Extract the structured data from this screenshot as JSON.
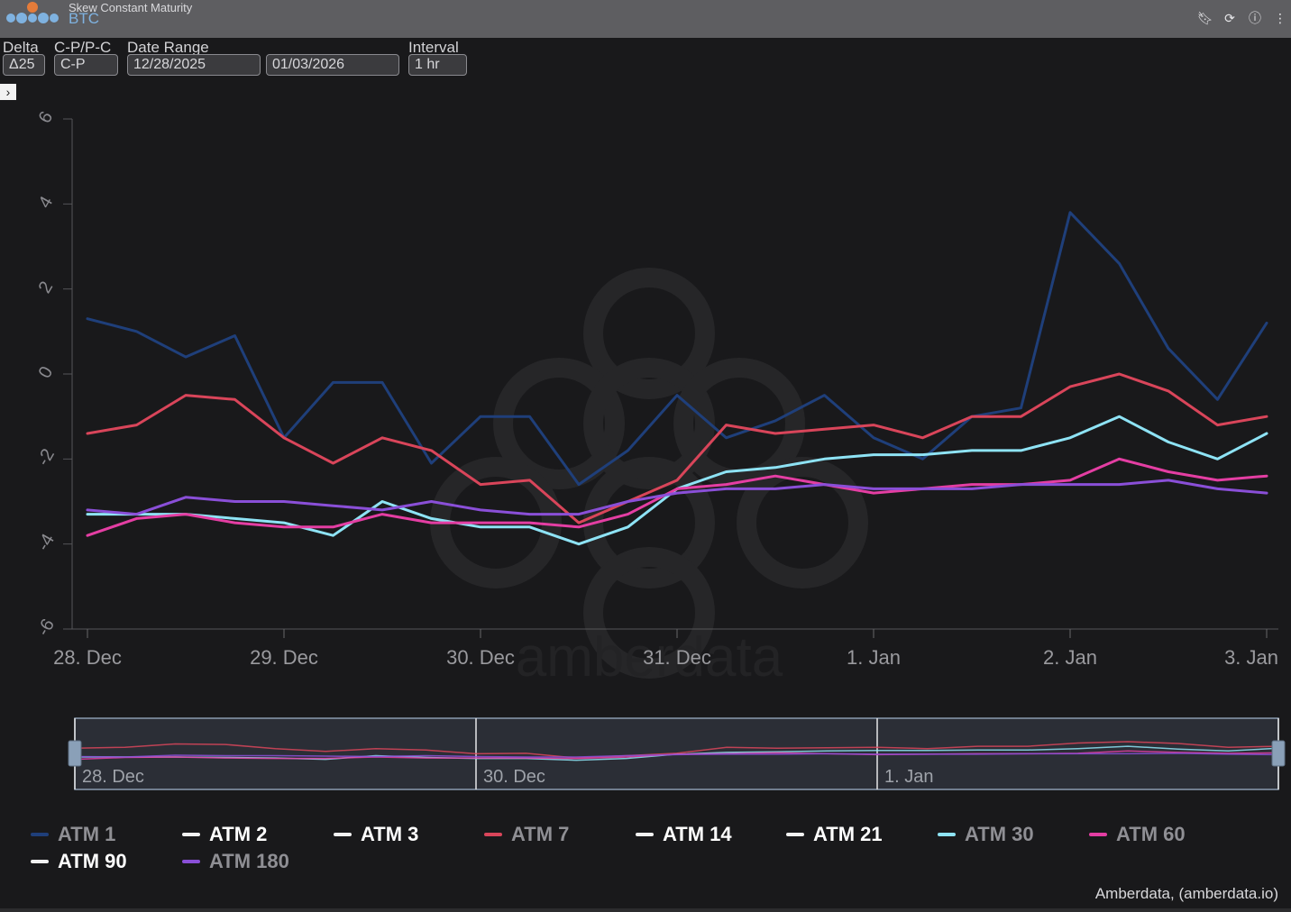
{
  "header": {
    "subtitle": "Skew Constant Maturity",
    "asset": "BTC",
    "icons": [
      "bookmark-icon",
      "refresh-icon",
      "info-icon",
      "more-icon"
    ]
  },
  "controls": {
    "delta": {
      "label": "Delta",
      "value": "Δ25"
    },
    "cp": {
      "label": "C-P/P-C",
      "value": "C-P"
    },
    "date_range": {
      "label": "Date Range",
      "start": "12/28/2025",
      "end": "01/03/2026"
    },
    "interval": {
      "label": "Interval",
      "value": "1 hr"
    }
  },
  "sidebar_toggle": "›",
  "watermark": "amberdata",
  "credits": "Amberdata, (amberdata.io)",
  "colors": {
    "ATM 1": "#1f3f7a",
    "ATM 7": "#d9455a",
    "ATM 30": "#8ee3f5",
    "ATM 60": "#e43ea3",
    "ATM 180": "#8a4fd8",
    "hidden": "#f2f2f2"
  },
  "chart_data": {
    "type": "line",
    "title": "",
    "xlabel": "",
    "ylabel": "",
    "ylim": [
      -6,
      6
    ],
    "yticks": [
      "6",
      "4",
      "2",
      "0",
      "-2",
      "-4",
      "-6"
    ],
    "ytick_values": [
      6,
      4,
      2,
      0,
      -2,
      -4,
      -6
    ],
    "xticks": [
      "28. Dec",
      "29. Dec",
      "30. Dec",
      "31. Dec",
      "1. Jan",
      "2. Jan",
      "3. Jan"
    ],
    "navigator_labels": [
      "28. Dec",
      "30. Dec",
      "1. Jan"
    ],
    "x_days": [
      0,
      0.25,
      0.5,
      0.75,
      1,
      1.25,
      1.5,
      1.75,
      2,
      2.25,
      2.5,
      2.75,
      3,
      3.25,
      3.5,
      3.75,
      4,
      4.25,
      4.5,
      4.75,
      5,
      5.25,
      5.5,
      5.75,
      6
    ],
    "legend": [
      "ATM 1",
      "ATM 2",
      "ATM 3",
      "ATM 7",
      "ATM 14",
      "ATM 21",
      "ATM 30",
      "ATM 60",
      "ATM 90",
      "ATM 180"
    ],
    "legend_position": "bottom",
    "series": [
      {
        "name": "ATM 1",
        "visible": true,
        "values": [
          1.3,
          1.0,
          0.4,
          0.9,
          -1.5,
          -0.2,
          -0.2,
          -2.1,
          -1.0,
          -1.0,
          -2.6,
          -1.8,
          -0.5,
          -1.5,
          -1.1,
          -0.5,
          -1.5,
          -2.0,
          -1.0,
          -0.8,
          3.8,
          2.6,
          0.6,
          -0.6,
          1.2
        ]
      },
      {
        "name": "ATM 2",
        "visible": false,
        "values": []
      },
      {
        "name": "ATM 3",
        "visible": false,
        "values": []
      },
      {
        "name": "ATM 7",
        "visible": true,
        "values": [
          -1.4,
          -1.2,
          -0.5,
          -0.6,
          -1.5,
          -2.1,
          -1.5,
          -1.8,
          -2.6,
          -2.5,
          -3.5,
          -3.0,
          -2.5,
          -1.2,
          -1.4,
          -1.3,
          -1.2,
          -1.5,
          -1.0,
          -1.0,
          -0.3,
          0.0,
          -0.4,
          -1.2,
          -1.0
        ]
      },
      {
        "name": "ATM 14",
        "visible": false,
        "values": []
      },
      {
        "name": "ATM 21",
        "visible": false,
        "values": []
      },
      {
        "name": "ATM 30",
        "visible": true,
        "values": [
          -3.3,
          -3.3,
          -3.3,
          -3.4,
          -3.5,
          -3.8,
          -3.0,
          -3.4,
          -3.6,
          -3.6,
          -4.0,
          -3.6,
          -2.7,
          -2.3,
          -2.2,
          -2.0,
          -1.9,
          -1.9,
          -1.8,
          -1.8,
          -1.5,
          -1.0,
          -1.6,
          -2.0,
          -1.4
        ]
      },
      {
        "name": "ATM 60",
        "visible": true,
        "values": [
          -3.8,
          -3.4,
          -3.3,
          -3.5,
          -3.6,
          -3.6,
          -3.3,
          -3.5,
          -3.5,
          -3.5,
          -3.6,
          -3.3,
          -2.7,
          -2.6,
          -2.4,
          -2.6,
          -2.8,
          -2.7,
          -2.6,
          -2.6,
          -2.5,
          -2.0,
          -2.3,
          -2.5,
          -2.4
        ]
      },
      {
        "name": "ATM 90",
        "visible": false,
        "values": []
      },
      {
        "name": "ATM 180",
        "visible": true,
        "values": [
          -3.2,
          -3.3,
          -2.9,
          -3.0,
          -3.0,
          -3.1,
          -3.2,
          -3.0,
          -3.2,
          -3.3,
          -3.3,
          -3.0,
          -2.8,
          -2.7,
          -2.7,
          -2.6,
          -2.7,
          -2.7,
          -2.7,
          -2.6,
          -2.6,
          -2.6,
          -2.5,
          -2.7,
          -2.8
        ]
      }
    ]
  }
}
